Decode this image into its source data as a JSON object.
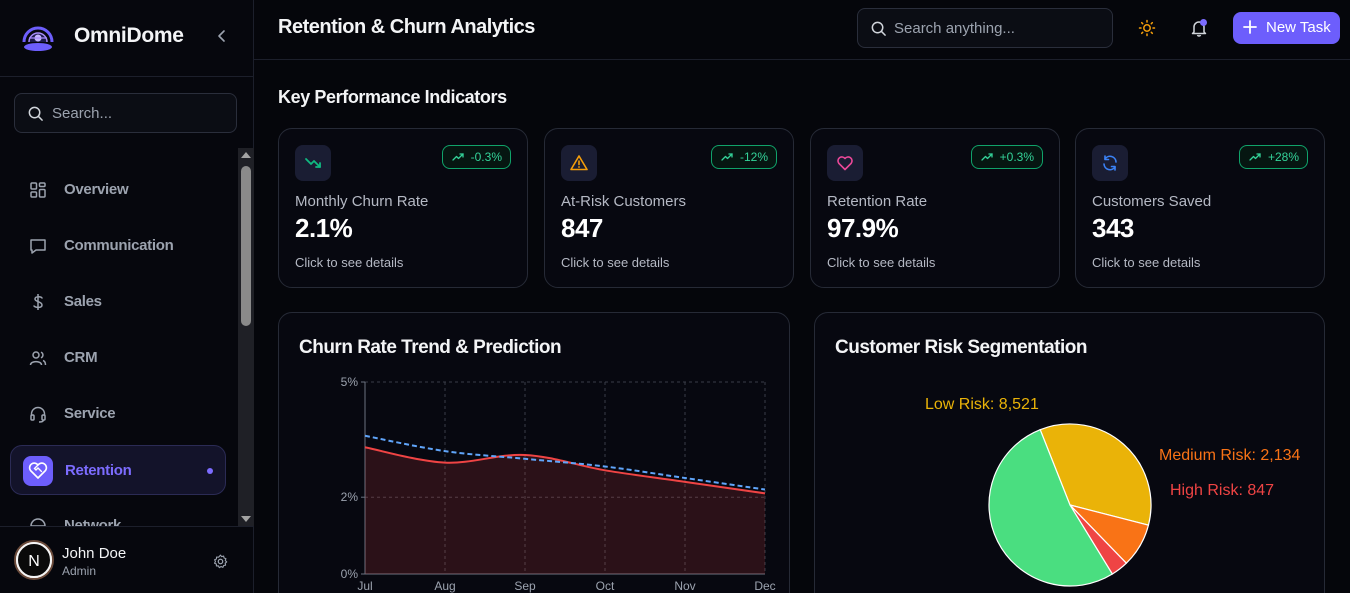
{
  "app": {
    "name": "OmniDome"
  },
  "sidebar": {
    "search_placeholder": "Search...",
    "items": [
      {
        "label": "Overview",
        "icon": "grid-icon"
      },
      {
        "label": "Communication",
        "icon": "message-icon"
      },
      {
        "label": "Sales",
        "icon": "dollar-icon"
      },
      {
        "label": "CRM",
        "icon": "users-icon"
      },
      {
        "label": "Service",
        "icon": "headset-icon"
      },
      {
        "label": "Retention",
        "icon": "heart-handshake-icon",
        "active": true
      },
      {
        "label": "Network",
        "icon": "globe-icon"
      }
    ],
    "user": {
      "name": "John Doe",
      "role": "Admin",
      "initial": "N"
    }
  },
  "header": {
    "title": "Retention & Churn Analytics",
    "search_placeholder": "Search anything...",
    "new_task_label": "New Task"
  },
  "kpi_section": {
    "title": "Key Performance Indicators",
    "cards": [
      {
        "label": "Monthly Churn Rate",
        "value": "2.1%",
        "change": "-0.3%",
        "hint": "Click to see details",
        "icon": "trending-down-icon",
        "icon_color": "#10b981"
      },
      {
        "label": "At-Risk Customers",
        "value": "847",
        "change": "-12%",
        "hint": "Click to see details",
        "icon": "alert-triangle-icon",
        "icon_color": "#f59e0b"
      },
      {
        "label": "Retention Rate",
        "value": "97.9%",
        "change": "+0.3%",
        "hint": "Click to see details",
        "icon": "heart-icon",
        "icon_color": "#ec4899"
      },
      {
        "label": "Customers Saved",
        "value": "343",
        "change": "+28%",
        "hint": "Click to see details",
        "icon": "refresh-icon",
        "icon_color": "#3b82f6"
      }
    ]
  },
  "chart_data": [
    {
      "type": "line",
      "title": "Churn Rate Trend & Prediction",
      "x": [
        "Jul",
        "Aug",
        "Sep",
        "Oct",
        "Nov",
        "Dec"
      ],
      "y_ticks": [
        "0%",
        "2%",
        "5%"
      ],
      "ylim": [
        0,
        5
      ],
      "grid": true,
      "series": [
        {
          "style": "solid",
          "color": "#ef4444",
          "values": [
            3.3,
            2.9,
            3.1,
            2.7,
            2.4,
            2.1
          ]
        },
        {
          "style": "dashed",
          "color": "#60a5fa",
          "values": [
            3.6,
            3.2,
            3.0,
            2.8,
            2.5,
            2.2
          ]
        }
      ]
    },
    {
      "type": "pie",
      "title": "Customer Risk Segmentation",
      "slices": [
        {
          "label": "Low Risk: 8,521",
          "value": 8521,
          "color": "#eab308"
        },
        {
          "label": "Medium Risk: 2,134",
          "value": 2134,
          "color": "#f97316"
        },
        {
          "label": "High Risk: 847",
          "value": 847,
          "color": "#ef4444"
        },
        {
          "label": "",
          "value": 12845,
          "color": "#4ade80"
        }
      ]
    }
  ]
}
